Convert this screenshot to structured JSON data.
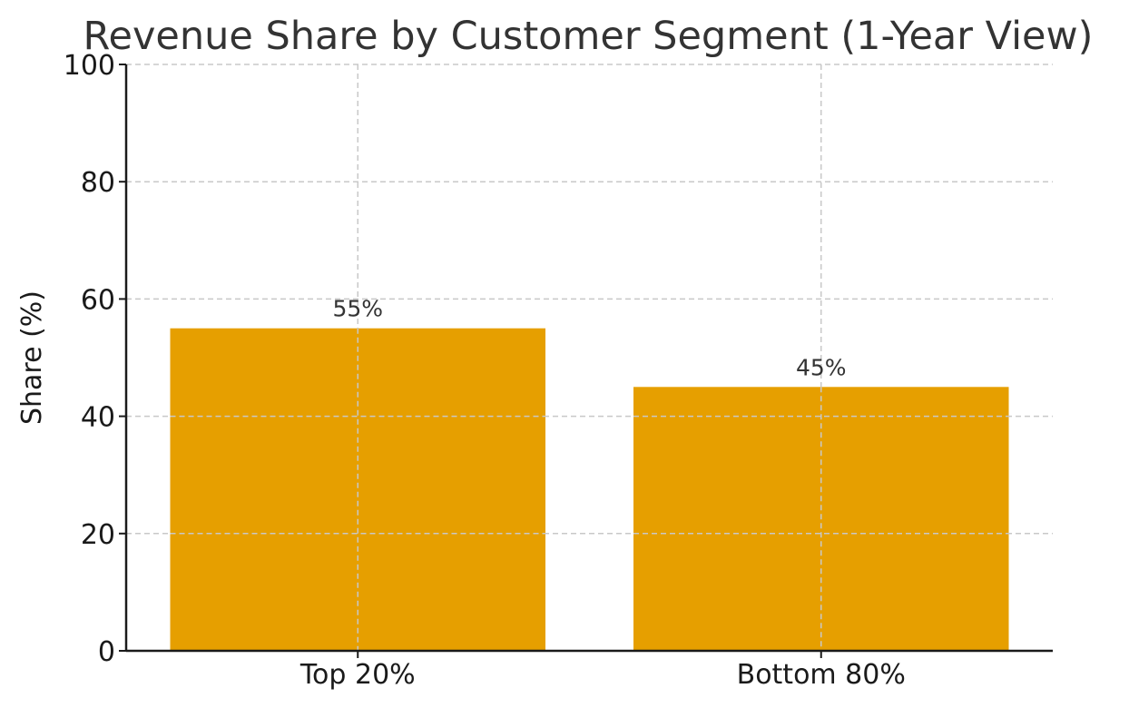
{
  "chart_data": {
    "type": "bar",
    "title": "Revenue Share by Customer Segment (1-Year View)",
    "xlabel": "",
    "ylabel": "Share (%)",
    "categories": [
      "Top 20%",
      "Bottom 80%"
    ],
    "values": [
      55,
      45
    ],
    "data_labels": [
      "55%",
      "45%"
    ],
    "ylim": [
      0,
      100
    ],
    "yticks": [
      0,
      20,
      40,
      60,
      80,
      100
    ],
    "ytick_labels": [
      "0",
      "20",
      "40",
      "60",
      "80",
      "100"
    ],
    "grid": true,
    "colors": {
      "bar": "#E69F00",
      "grid": "#c8c8c8",
      "axis": "#1a1a1a"
    }
  }
}
